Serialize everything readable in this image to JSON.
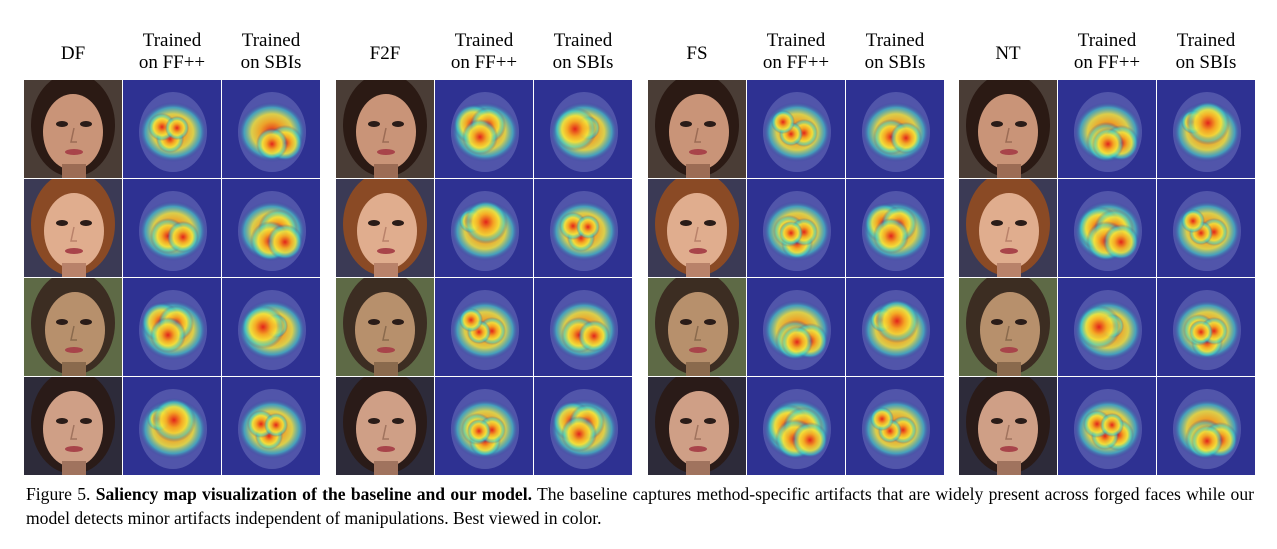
{
  "figure": {
    "groups": [
      {
        "method": "DF",
        "col_ffpp": [
          "Trained",
          "on FF++"
        ],
        "col_sbi": [
          "Trained",
          "on SBIs"
        ]
      },
      {
        "method": "F2F",
        "col_ffpp": [
          "Trained",
          "on FF++"
        ],
        "col_sbi": [
          "Trained",
          "on SBIs"
        ]
      },
      {
        "method": "FS",
        "col_ffpp": [
          "Trained",
          "on FF++"
        ],
        "col_sbi": [
          "Trained",
          "on SBIs"
        ]
      },
      {
        "method": "NT",
        "col_ffpp": [
          "Trained",
          "on FF++"
        ],
        "col_sbi": [
          "Trained",
          "on SBIs"
        ]
      }
    ]
  },
  "caption": {
    "label": "Figure 5.",
    "title": "Saliency map visualization of the baseline and our model.",
    "body": "The baseline captures method-specific artifacts that are widely present across forged faces while our model detects minor artifacts independent of manipulations. Best viewed in color."
  },
  "colors": {
    "heat_hot": "#e2231a",
    "heat_warm": "#f5a623",
    "heat_mid": "#f4e33a",
    "heat_cool": "#3fd1c8",
    "heat_bg": "#2e3192"
  }
}
